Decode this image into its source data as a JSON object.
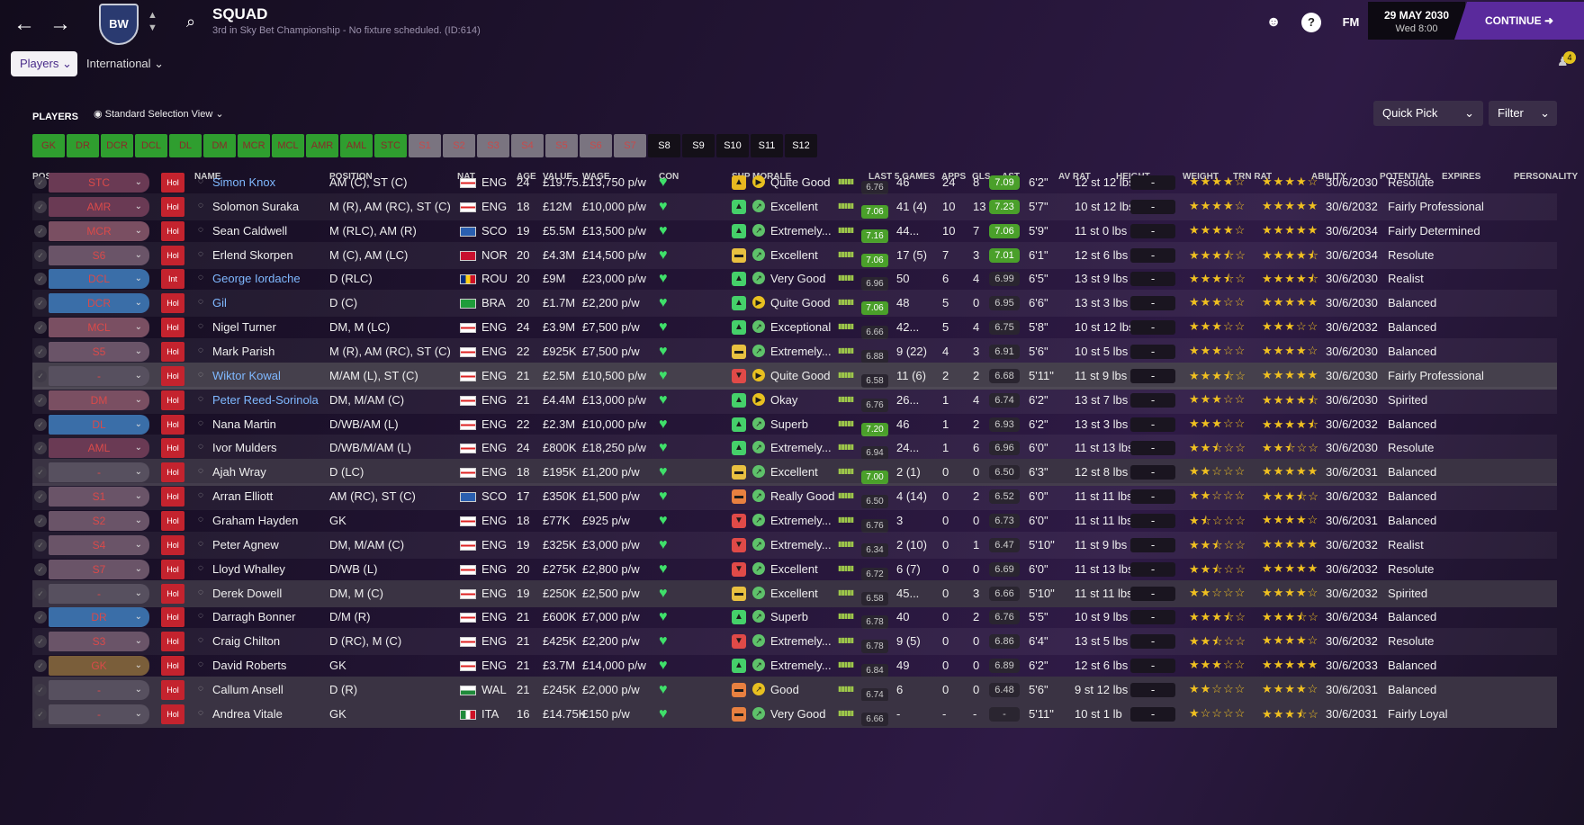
{
  "header": {
    "title": "SQUAD",
    "subtitle": "3rd in Sky Bet Championship - No fixture scheduled. (ID:614)",
    "crest": "BW",
    "fm": "FM",
    "date": "29 MAY 2030",
    "time": "Wed 8:00",
    "continue": "CONTINUE",
    "notifications": "4",
    "help": "?"
  },
  "tabs": {
    "players": "Players ⌄",
    "international": "International ⌄"
  },
  "toolbar": {
    "section": "PLAYERS",
    "view": "Standard Selection View",
    "quick_pick": "Quick Pick",
    "filter": "Filter"
  },
  "chips": [
    "GK",
    "DR",
    "DCR",
    "DCL",
    "DL",
    "DM",
    "MCR",
    "MCL",
    "AMR",
    "AML",
    "STC",
    "S1",
    "S2",
    "S3",
    "S4",
    "S5",
    "S6",
    "S7",
    "S8",
    "S9",
    "S10",
    "S11",
    "S12"
  ],
  "columns": [
    "POSITION SELECTED",
    "INF",
    "NAME",
    "POSITION",
    "NAT",
    "AGE",
    "VALUE",
    "WAGE",
    "CON",
    "SHP",
    "MORALE",
    "LAST 5 GAMES",
    "APPS",
    "GLS",
    "AST",
    "AV RAT",
    "HEIGHT",
    "WEIGHT",
    "TRN RAT",
    "ABILITY",
    "POTENTIAL",
    "EXPIRES",
    "PERSONALITY"
  ],
  "colors": {
    "green": "#2f9e2f",
    "accent": "#5a2a9c",
    "background": "#1c1228"
  },
  "icons": {
    "back": "arrow-left-icon",
    "forward": "arrow-right-icon",
    "search": "search-icon",
    "help": "question-icon",
    "heart": "heart-icon"
  },
  "players": [
    {
      "slot": "STC",
      "inf": "Hol",
      "name": "Simon Knox",
      "pos": "AM (C), ST (C)",
      "flag": "eng",
      "nat": "ENG",
      "age": "24",
      "value": "£19.75...",
      "wage": "£13,750 p/w",
      "shp": "up",
      "morale": "Quite Good",
      "mico": "▶",
      "l5": "6.76",
      "apps": "46",
      "gls": "24",
      "ast": "8",
      "av": "7.09",
      "ht": "6'2\"",
      "wt": "12 st 12 lbs",
      "trn": "-",
      "ab": 4,
      "pt": 4,
      "exp": "30/6/2030",
      "per": "Resolute"
    },
    {
      "slot": "AMR",
      "inf": "Hol",
      "name": "Solomon Suraka",
      "pos": "M (R), AM (RC), ST (C)",
      "flag": "eng",
      "nat": "ENG",
      "age": "18",
      "value": "£12M",
      "wage": "£10,000 p/w",
      "shp": "green",
      "morale": "Excellent",
      "mico": "↗",
      "l5": "7.06",
      "apps": "41 (4)",
      "gls": "10",
      "ast": "13",
      "av": "7.23",
      "ht": "5'7\"",
      "wt": "10 st 12 lbs",
      "trn": "-",
      "ab": 4,
      "pt": 5,
      "exp": "30/6/2032",
      "per": "Fairly Professional"
    },
    {
      "slot": "MCR",
      "inf": "Hol",
      "name": "Sean Caldwell",
      "pos": "M (RLC), AM (R)",
      "flag": "sco",
      "nat": "SCO",
      "age": "19",
      "value": "£5.5M",
      "wage": "£13,500 p/w",
      "shp": "green",
      "morale": "Extremely...",
      "mico": "↗",
      "l5": "7.16",
      "apps": "44...",
      "gls": "10",
      "ast": "7",
      "av": "7.06",
      "ht": "5'9\"",
      "wt": "11 st 0 lbs",
      "trn": "-",
      "ab": 4,
      "pt": 5,
      "exp": "30/6/2034",
      "per": "Fairly Determined"
    },
    {
      "slot": "S6",
      "inf": "Hol",
      "name": "Erlend Skorpen",
      "pos": "M (C), AM (LC)",
      "flag": "nor",
      "nat": "NOR",
      "age": "20",
      "value": "£4.3M",
      "wage": "£14,500 p/w",
      "shp": "yellow",
      "morale": "Excellent",
      "mico": "↗",
      "l5": "7.06",
      "apps": "17 (5)",
      "gls": "7",
      "ast": "3",
      "av": "7.01",
      "ht": "6'1\"",
      "wt": "12 st 6 lbs",
      "trn": "-",
      "ab": 3.5,
      "pt": 4.5,
      "exp": "30/6/2034",
      "per": "Resolute"
    },
    {
      "slot": "DCL",
      "inf": "Int",
      "name": "George Iordache",
      "pos": "D (RLC)",
      "flag": "rou",
      "nat": "ROU",
      "age": "20",
      "value": "£9M",
      "wage": "£23,000 p/w",
      "shp": "green",
      "morale": "Very Good",
      "mico": "↗",
      "l5": "6.96",
      "apps": "50",
      "gls": "6",
      "ast": "4",
      "av": "6.99",
      "ht": "6'5\"",
      "wt": "13 st 9 lbs",
      "trn": "-",
      "ab": 3.5,
      "pt": 4.5,
      "exp": "30/6/2030",
      "per": "Realist"
    },
    {
      "slot": "DCR",
      "inf": "Hol",
      "name": "Gil",
      "pos": "D (C)",
      "flag": "bra",
      "nat": "BRA",
      "age": "20",
      "value": "£1.7M",
      "wage": "£2,200 p/w",
      "shp": "green",
      "morale": "Quite Good",
      "mico": "▶",
      "l5": "7.06",
      "apps": "48",
      "gls": "5",
      "ast": "0",
      "av": "6.95",
      "ht": "6'6\"",
      "wt": "13 st 3 lbs",
      "trn": "-",
      "ab": 3,
      "pt": 5,
      "exp": "30/6/2030",
      "per": "Balanced"
    },
    {
      "slot": "MCL",
      "inf": "Hol",
      "name": "Nigel Turner",
      "pos": "DM, M (LC)",
      "flag": "eng",
      "nat": "ENG",
      "age": "24",
      "value": "£3.9M",
      "wage": "£7,500 p/w",
      "shp": "green",
      "morale": "Exceptional",
      "mico": "↗",
      "l5": "6.66",
      "apps": "42...",
      "gls": "5",
      "ast": "4",
      "av": "6.75",
      "ht": "5'8\"",
      "wt": "10 st 12 lbs",
      "trn": "-",
      "ab": 3,
      "pt": 3,
      "exp": "30/6/2032",
      "per": "Balanced"
    },
    {
      "slot": "S5",
      "inf": "Hol",
      "name": "Mark Parish",
      "pos": "M (R), AM (RC), ST (C)",
      "flag": "eng",
      "nat": "ENG",
      "age": "22",
      "value": "£925K",
      "wage": "£7,500 p/w",
      "shp": "yellow",
      "morale": "Extremely...",
      "mico": "↗",
      "l5": "6.88",
      "apps": "9 (22)",
      "gls": "4",
      "ast": "3",
      "av": "6.91",
      "ht": "5'6\"",
      "wt": "10 st 5 lbs",
      "trn": "-",
      "ab": 3,
      "pt": 4,
      "exp": "30/6/2030",
      "per": "Balanced"
    },
    {
      "slot": "-",
      "inf": "Hol",
      "name": "Wiktor Kowal",
      "pos": "M/AM (L), ST (C)",
      "flag": "eng",
      "nat": "ENG",
      "age": "21",
      "value": "£2.5M",
      "wage": "£10,500 p/w",
      "shp": "red",
      "morale": "Quite Good",
      "mico": "▶",
      "l5": "6.58",
      "apps": "11 (6)",
      "gls": "2",
      "ast": "2",
      "av": "6.68",
      "ht": "5'11\"",
      "wt": "11 st 9 lbs",
      "trn": "-",
      "ab": 3.5,
      "pt": 5,
      "exp": "30/6/2030",
      "per": "Fairly Professional"
    },
    {
      "slot": "DM",
      "inf": "Hol",
      "name": "Peter Reed-Sorinola",
      "pos": "DM, M/AM (C)",
      "flag": "eng",
      "nat": "ENG",
      "age": "21",
      "value": "£4.4M",
      "wage": "£13,000 p/w",
      "shp": "green",
      "morale": "Okay",
      "mico": "▶",
      "l5": "6.76",
      "apps": "26...",
      "gls": "1",
      "ast": "4",
      "av": "6.74",
      "ht": "6'2\"",
      "wt": "13 st 7 lbs",
      "trn": "-",
      "ab": 3,
      "pt": 4.5,
      "exp": "30/6/2030",
      "per": "Spirited"
    },
    {
      "slot": "DL",
      "inf": "Hol",
      "name": "Nana Martin",
      "pos": "D/WB/AM (L)",
      "flag": "eng",
      "nat": "ENG",
      "age": "22",
      "value": "£2.3M",
      "wage": "£10,000 p/w",
      "shp": "green",
      "morale": "Superb",
      "mico": "↗",
      "l5": "7.20",
      "apps": "46",
      "gls": "1",
      "ast": "2",
      "av": "6.93",
      "ht": "6'2\"",
      "wt": "13 st 3 lbs",
      "trn": "-",
      "ab": 3,
      "pt": 4.5,
      "exp": "30/6/2032",
      "per": "Balanced"
    },
    {
      "slot": "AML",
      "inf": "Hol",
      "name": "Ivor Mulders",
      "pos": "D/WB/M/AM (L)",
      "flag": "eng",
      "nat": "ENG",
      "age": "24",
      "value": "£800K",
      "wage": "£18,250 p/w",
      "shp": "green",
      "morale": "Extremely...",
      "mico": "↗",
      "l5": "6.94",
      "apps": "24...",
      "gls": "1",
      "ast": "6",
      "av": "6.96",
      "ht": "6'0\"",
      "wt": "11 st 13 lbs",
      "trn": "-",
      "ab": 2.5,
      "pt": 2.5,
      "exp": "30/6/2030",
      "per": "Resolute"
    },
    {
      "slot": "-",
      "inf": "Hol",
      "name": "Ajah Wray",
      "pos": "D (LC)",
      "flag": "eng",
      "nat": "ENG",
      "age": "18",
      "value": "£195K",
      "wage": "£1,200 p/w",
      "shp": "yellow",
      "morale": "Excellent",
      "mico": "↗",
      "l5": "7.00",
      "apps": "2 (1)",
      "gls": "0",
      "ast": "0",
      "av": "6.50",
      "ht": "6'3\"",
      "wt": "12 st 8 lbs",
      "trn": "-",
      "ab": 2,
      "pt": 5,
      "exp": "30/6/2031",
      "per": "Balanced"
    },
    {
      "slot": "S1",
      "inf": "Hol",
      "name": "Arran Elliott",
      "pos": "AM (RC), ST (C)",
      "flag": "sco",
      "nat": "SCO",
      "age": "17",
      "value": "£350K",
      "wage": "£1,500 p/w",
      "shp": "orange",
      "morale": "Really Good",
      "mico": "↗",
      "l5": "6.50",
      "apps": "4 (14)",
      "gls": "0",
      "ast": "2",
      "av": "6.52",
      "ht": "6'0\"",
      "wt": "11 st 11 lbs",
      "trn": "-",
      "ab": 2,
      "pt": 3.5,
      "exp": "30/6/2032",
      "per": "Balanced"
    },
    {
      "slot": "S2",
      "inf": "Hol",
      "name": "Graham Hayden",
      "pos": "GK",
      "flag": "eng",
      "nat": "ENG",
      "age": "18",
      "value": "£77K",
      "wage": "£925 p/w",
      "shp": "red",
      "morale": "Extremely...",
      "mico": "↗",
      "l5": "6.76",
      "apps": "3",
      "gls": "0",
      "ast": "0",
      "av": "6.73",
      "ht": "6'0\"",
      "wt": "11 st 11 lbs",
      "trn": "-",
      "ab": 1.5,
      "pt": 4,
      "exp": "30/6/2031",
      "per": "Balanced"
    },
    {
      "slot": "S4",
      "inf": "Hol",
      "name": "Peter Agnew",
      "pos": "DM, M/AM (C)",
      "flag": "eng",
      "nat": "ENG",
      "age": "19",
      "value": "£325K",
      "wage": "£3,000 p/w",
      "shp": "red",
      "morale": "Extremely...",
      "mico": "↗",
      "l5": "6.34",
      "apps": "2 (10)",
      "gls": "0",
      "ast": "1",
      "av": "6.47",
      "ht": "5'10\"",
      "wt": "11 st 9 lbs",
      "trn": "-",
      "ab": 2.5,
      "pt": 5,
      "exp": "30/6/2032",
      "per": "Realist"
    },
    {
      "slot": "S7",
      "inf": "Hol",
      "name": "Lloyd Whalley",
      "pos": "D/WB (L)",
      "flag": "eng",
      "nat": "ENG",
      "age": "20",
      "value": "£275K",
      "wage": "£2,800 p/w",
      "shp": "red",
      "morale": "Excellent",
      "mico": "↗",
      "l5": "6.72",
      "apps": "6 (7)",
      "gls": "0",
      "ast": "0",
      "av": "6.69",
      "ht": "6'0\"",
      "wt": "11 st 13 lbs",
      "trn": "-",
      "ab": 2.5,
      "pt": 5,
      "exp": "30/6/2032",
      "per": "Resolute"
    },
    {
      "slot": "-",
      "inf": "Hol",
      "name": "Derek Dowell",
      "pos": "DM, M (C)",
      "flag": "eng",
      "nat": "ENG",
      "age": "19",
      "value": "£250K",
      "wage": "£2,500 p/w",
      "shp": "yellow",
      "morale": "Excellent",
      "mico": "↗",
      "l5": "6.58",
      "apps": "45...",
      "gls": "0",
      "ast": "3",
      "av": "6.66",
      "ht": "5'10\"",
      "wt": "11 st 11 lbs",
      "trn": "-",
      "ab": 2,
      "pt": 4,
      "exp": "30/6/2032",
      "per": "Spirited"
    },
    {
      "slot": "DR",
      "inf": "Hol",
      "name": "Darragh Bonner",
      "pos": "D/M (R)",
      "flag": "eng",
      "nat": "ENG",
      "age": "21",
      "value": "£600K",
      "wage": "£7,000 p/w",
      "shp": "green",
      "morale": "Superb",
      "mico": "↗",
      "l5": "6.78",
      "apps": "40",
      "gls": "0",
      "ast": "2",
      "av": "6.76",
      "ht": "5'5\"",
      "wt": "10 st 9 lbs",
      "trn": "-",
      "ab": 3.5,
      "pt": 3.5,
      "exp": "30/6/2034",
      "per": "Balanced"
    },
    {
      "slot": "S3",
      "inf": "Hol",
      "name": "Craig Chilton",
      "pos": "D (RC), M (C)",
      "flag": "eng",
      "nat": "ENG",
      "age": "21",
      "value": "£425K",
      "wage": "£2,200 p/w",
      "shp": "red",
      "morale": "Extremely...",
      "mico": "↗",
      "l5": "6.78",
      "apps": "9 (5)",
      "gls": "0",
      "ast": "0",
      "av": "6.86",
      "ht": "6'4\"",
      "wt": "13 st 5 lbs",
      "trn": "-",
      "ab": 2.5,
      "pt": 4,
      "exp": "30/6/2032",
      "per": "Resolute"
    },
    {
      "slot": "GK",
      "inf": "Hol",
      "name": "David Roberts",
      "pos": "GK",
      "flag": "eng",
      "nat": "ENG",
      "age": "21",
      "value": "£3.7M",
      "wage": "£14,000 p/w",
      "shp": "green",
      "morale": "Extremely...",
      "mico": "↗",
      "l5": "6.84",
      "apps": "49",
      "gls": "0",
      "ast": "0",
      "av": "6.89",
      "ht": "6'2\"",
      "wt": "12 st 6 lbs",
      "trn": "-",
      "ab": 3,
      "pt": 5,
      "exp": "30/6/2033",
      "per": "Balanced"
    },
    {
      "slot": "-",
      "inf": "Hol",
      "name": "Callum Ansell",
      "pos": "D (R)",
      "flag": "wal",
      "nat": "WAL",
      "age": "21",
      "value": "£245K",
      "wage": "£2,000 p/w",
      "shp": "orange",
      "morale": "Good",
      "mico": "↗",
      "l5": "6.74",
      "apps": "6",
      "gls": "0",
      "ast": "0",
      "av": "6.48",
      "ht": "5'6\"",
      "wt": "9 st 12 lbs",
      "trn": "-",
      "ab": 2,
      "pt": 4,
      "exp": "30/6/2031",
      "per": "Balanced"
    },
    {
      "slot": "-",
      "inf": "Hol",
      "name": "Andrea Vitale",
      "pos": "GK",
      "flag": "ita",
      "nat": "ITA",
      "age": "16",
      "value": "£14.75K",
      "wage": "£150 p/w",
      "shp": "orange",
      "morale": "Very Good",
      "mico": "↗",
      "l5": "6.66",
      "apps": "-",
      "gls": "-",
      "ast": "-",
      "av": "-",
      "ht": "5'11\"",
      "wt": "10 st 1 lb",
      "trn": "-",
      "ab": 1,
      "pt": 3.5,
      "exp": "30/6/2031",
      "per": "Fairly Loyal"
    }
  ]
}
